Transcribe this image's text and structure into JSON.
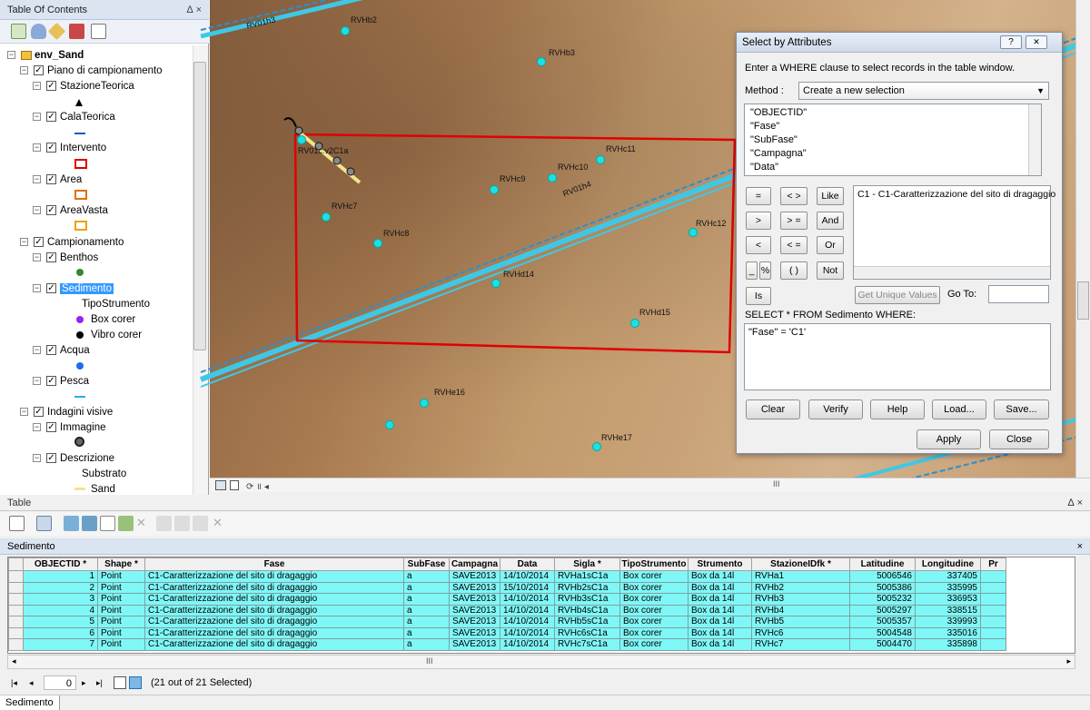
{
  "toc": {
    "title": "Table Of Contents",
    "pin": "∆ ×",
    "root": "env_Sand",
    "items": [
      {
        "label": "Piano di campionamento",
        "level": 1,
        "type": "group"
      },
      {
        "label": "StazioneTeorica",
        "level": 2,
        "type": "layer"
      },
      {
        "label": "CalaTeorica",
        "level": 2,
        "type": "layer"
      },
      {
        "label": "Intervento",
        "level": 2,
        "type": "layer"
      },
      {
        "label": "Area",
        "level": 2,
        "type": "layer"
      },
      {
        "label": "AreaVasta",
        "level": 2,
        "type": "layer"
      },
      {
        "label": "Campionamento",
        "level": 1,
        "type": "group"
      },
      {
        "label": "Benthos",
        "level": 2,
        "type": "layer"
      },
      {
        "label": "Sedimento",
        "level": 2,
        "type": "layer"
      },
      {
        "label": "TipoStrumento",
        "level": 3,
        "type": "text"
      },
      {
        "label": "Box corer",
        "level": 3,
        "type": "legend"
      },
      {
        "label": "Vibro corer",
        "level": 3,
        "type": "legend"
      },
      {
        "label": "Acqua",
        "level": 2,
        "type": "layer"
      },
      {
        "label": "Pesca",
        "level": 2,
        "type": "layer"
      },
      {
        "label": "Indagini visive",
        "level": 1,
        "type": "group"
      },
      {
        "label": "Immagine",
        "level": 2,
        "type": "layer"
      },
      {
        "label": "Descrizione",
        "level": 2,
        "type": "layer"
      },
      {
        "label": "Substrato",
        "level": 3,
        "type": "text"
      },
      {
        "label": "Sand",
        "level": 3,
        "type": "legend"
      }
    ],
    "colors": {
      "selected": "#3399ff",
      "box_corer": "#a020f0",
      "vibro_corer": "#000000",
      "benthos": "#2e8b2e",
      "acqua": "#1e6ee6",
      "intervento": "#e00000",
      "area": "#e07000",
      "areavasta": "#f0a000",
      "cala": "#1e56c8",
      "pesca": "#22b0e8",
      "sand": "#f0e68c"
    }
  },
  "map": {
    "labels": [
      "RV01h3",
      "RVHb2",
      "RVHb3",
      "RVHc11",
      "RVHc10",
      "RVHc9",
      "RV01h4",
      "RVHc7",
      "RVHc8",
      "RVHc12",
      "RVHd14",
      "RVHd15",
      "RVHe16",
      "RVHe17",
      "RV01c:v2C1a"
    ],
    "scroll_text": "III"
  },
  "dialog": {
    "title": "Select by Attributes",
    "help": "?",
    "close": "✕",
    "instructions": "Enter a WHERE clause to select records in the table window.",
    "method_label": "Method :",
    "method_value": "Create a new selection",
    "fields": [
      "\"OBJECTID\"",
      "\"Fase\"",
      "\"SubFase\"",
      "\"Campagna\"",
      "\"Data\""
    ],
    "operators": [
      "=",
      "< >",
      "Like",
      ">",
      "> =",
      "And",
      "<",
      "< =",
      "Or",
      "_",
      "%",
      "( )",
      "Not",
      "Is"
    ],
    "values": [
      "C1 - C1-Caratterizzazione del sito di dragaggio"
    ],
    "get_unique": "Get Unique Values",
    "goto_label": "Go To:",
    "sql_label": "SELECT * FROM Sedimento WHERE:",
    "sql": "\"Fase\" = 'C1'",
    "buttons": {
      "clear": "Clear",
      "verify": "Verify",
      "help": "Help",
      "load": "Load...",
      "save": "Save...",
      "apply": "Apply",
      "close": "Close"
    }
  },
  "table_panel": {
    "title": "Table",
    "pin": "∆ ×",
    "tab": "Sedimento",
    "columns": [
      "OBJECTID *",
      "Shape *",
      "Fase",
      "SubFase",
      "Campagna",
      "Data",
      "Sigla *",
      "TipoStrumento",
      "Strumento",
      "StazioneIDfk *",
      "Latitudine",
      "Longitudine",
      "Pr"
    ],
    "rows": [
      [
        "1",
        "Point",
        "C1-Caratterizzazione del sito di dragaggio",
        "a",
        "SAVE2013",
        "14/10/2014",
        "RVHa1sC1a",
        "Box corer",
        "Box da 14l",
        "RVHa1",
        "5006546",
        "337405"
      ],
      [
        "2",
        "Point",
        "C1-Caratterizzazione del sito di dragaggio",
        "a",
        "SAVE2013",
        "15/10/2014",
        "RVHb2sC1a",
        "Box corer",
        "Box da 14l",
        "RVHb2",
        "5005386",
        "335995"
      ],
      [
        "3",
        "Point",
        "C1-Caratterizzazione del sito di dragaggio",
        "a",
        "SAVE2013",
        "14/10/2014",
        "RVHb3sC1a",
        "Box corer",
        "Box da 14l",
        "RVHb3",
        "5005232",
        "336953"
      ],
      [
        "4",
        "Point",
        "C1-Caratterizzazione del sito di dragaggio",
        "a",
        "SAVE2013",
        "14/10/2014",
        "RVHb4sC1a",
        "Box corer",
        "Box da 14l",
        "RVHb4",
        "5005297",
        "338515"
      ],
      [
        "5",
        "Point",
        "C1-Caratterizzazione del sito di dragaggio",
        "a",
        "SAVE2013",
        "14/10/2014",
        "RVHb5sC1a",
        "Box corer",
        "Box da 14l",
        "RVHb5",
        "5005357",
        "339993"
      ],
      [
        "6",
        "Point",
        "C1-Caratterizzazione del sito di dragaggio",
        "a",
        "SAVE2013",
        "14/10/2014",
        "RVHc6sC1a",
        "Box corer",
        "Box da 14l",
        "RVHc6",
        "5004548",
        "335016"
      ],
      [
        "7",
        "Point",
        "C1-Caratterizzazione del sito di dragaggio",
        "a",
        "SAVE2013",
        "14/10/2014",
        "RVHc7sC1a",
        "Box corer",
        "Box da 14l",
        "RVHc7",
        "5004470",
        "335898"
      ]
    ],
    "nav_record": "0",
    "nav_status": "(21 out of 21 Selected)",
    "scroll_text": "III",
    "status_tab": "Sedimento"
  }
}
